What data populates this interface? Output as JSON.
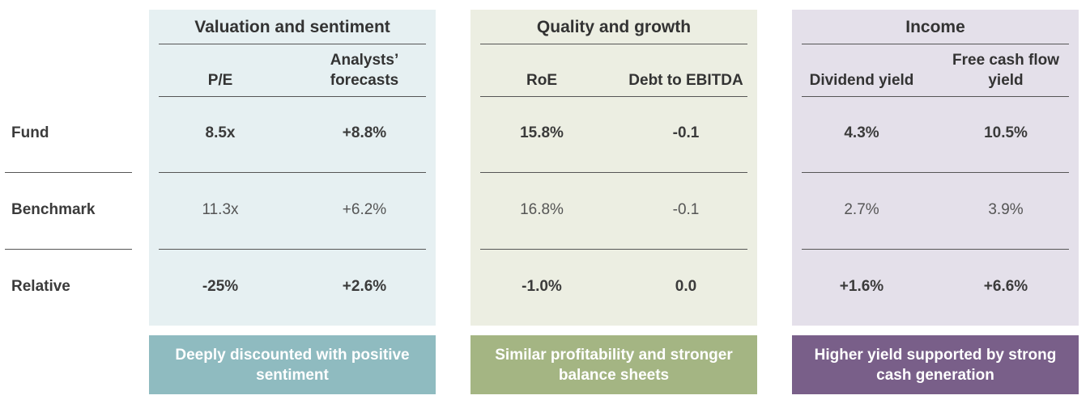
{
  "rows": [
    "Fund",
    "Benchmark",
    "Relative"
  ],
  "panels": [
    {
      "title": "Valuation and sentiment",
      "bg": "#e6f0f2",
      "summary_bg": "#8fbbc0",
      "columns": [
        "P/E",
        "Analysts’ forecasts"
      ],
      "values": [
        [
          "8.5x",
          "+8.8%"
        ],
        [
          "11.3x",
          "+6.2%"
        ],
        [
          "-25%",
          "+2.6%"
        ]
      ],
      "summary": "Deeply discounted with positive sentiment"
    },
    {
      "title": "Quality and growth",
      "bg": "#eceee2",
      "summary_bg": "#a4b583",
      "columns": [
        "RoE",
        "Debt to EBITDA"
      ],
      "values": [
        [
          "15.8%",
          "-0.1"
        ],
        [
          "16.8%",
          "-0.1"
        ],
        [
          "-1.0%",
          "0.0"
        ]
      ],
      "summary": "Similar profitability and stronger balance sheets"
    },
    {
      "title": "Income",
      "bg": "#e4e0ea",
      "summary_bg": "#795f89",
      "columns": [
        "Dividend yield",
        "Free cash flow yield"
      ],
      "values": [
        [
          "4.3%",
          "10.5%"
        ],
        [
          "2.7%",
          "3.9%"
        ],
        [
          "+1.6%",
          "+6.6%"
        ]
      ],
      "summary": "Higher yield supported by strong cash generation"
    }
  ]
}
